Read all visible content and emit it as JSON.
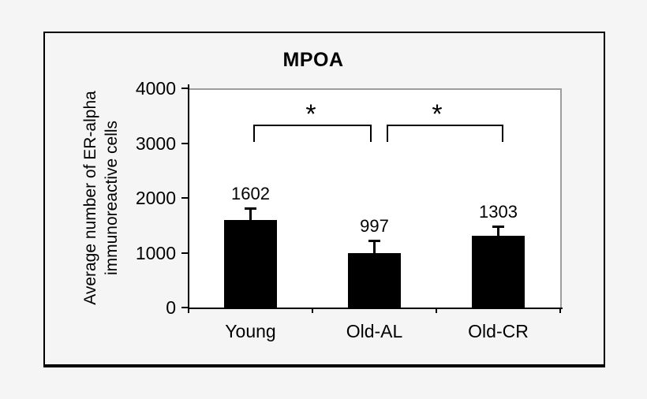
{
  "figure": {
    "title": "MPOA"
  },
  "chart_data": {
    "type": "bar",
    "title": "MPOA",
    "categories": [
      "Young",
      "Old-AL",
      "Old-CR"
    ],
    "values": [
      1602,
      997,
      1303
    ],
    "value_labels": [
      "1602",
      "997",
      "1303"
    ],
    "error_upper": [
      215,
      225,
      180
    ],
    "ylabel": "Average number of ER-alpha immunoreactive cells",
    "ylabel_lines": [
      "Average number of ER-alpha",
      "immunoreactive cells"
    ],
    "xlabel": "",
    "ylim": [
      0,
      4000
    ],
    "yticks": [
      0,
      1000,
      2000,
      3000,
      4000
    ],
    "grid": false,
    "legend": "none",
    "significance_brackets": [
      {
        "between": [
          "Young",
          "Old-AL"
        ],
        "label": "*"
      },
      {
        "between": [
          "Old-AL",
          "Old-CR"
        ],
        "label": "*"
      }
    ]
  },
  "colors": {
    "page_background": "#f5f5f5",
    "frame_border": "#000000",
    "plot_background": "#ffffff",
    "plot_border_gray": "#9d9d9d",
    "axis": "#000000",
    "bar": "#000000",
    "text": "#000000"
  }
}
